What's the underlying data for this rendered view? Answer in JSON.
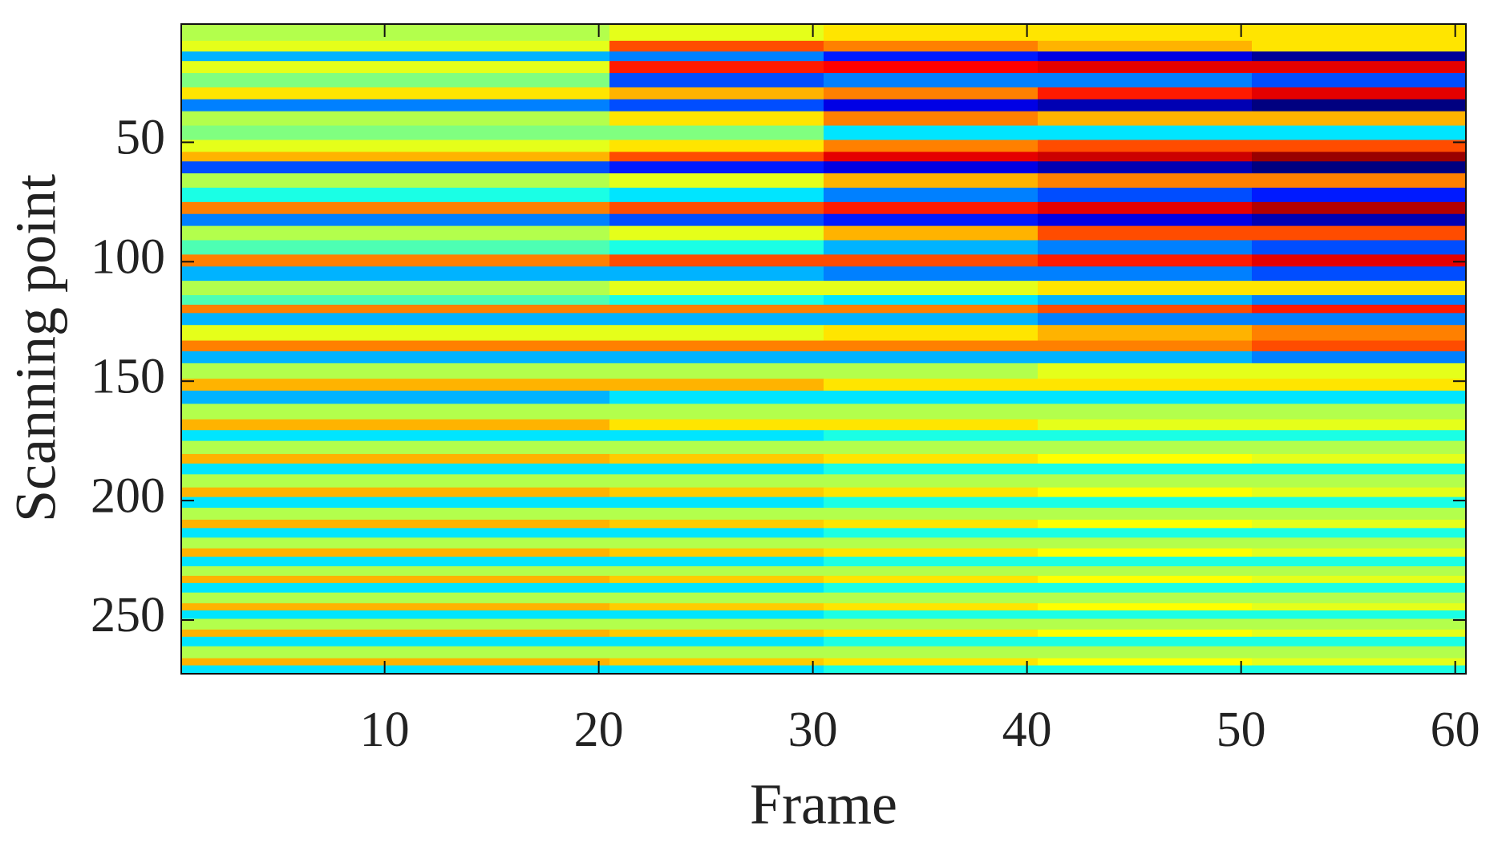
{
  "chart_data": {
    "type": "heatmap",
    "xlabel": "Frame",
    "ylabel": "Scanning point",
    "xlim": [
      0.5,
      60.5
    ],
    "ylim": [
      0.5,
      272.5
    ],
    "y_reversed": true,
    "xticks": [
      10,
      20,
      30,
      40,
      50,
      60
    ],
    "yticks": [
      50,
      100,
      150,
      200,
      250
    ],
    "colormap": "jet",
    "clim": [
      -1,
      1
    ],
    "x": [
      5.5,
      15.5,
      25.5,
      35.5,
      45.5,
      55.5
    ],
    "y": [
      5,
      10,
      14,
      18,
      24,
      30,
      34,
      40,
      46,
      52,
      56,
      60,
      66,
      72,
      78,
      82,
      88,
      94,
      100,
      104,
      112,
      116,
      120,
      123,
      130,
      136,
      139,
      146,
      152,
      156,
      163,
      169,
      172,
      178,
      183,
      186,
      192,
      197,
      200,
      206,
      210,
      213,
      218,
      222,
      225,
      230,
      233,
      236,
      241,
      245,
      247,
      252,
      256,
      258,
      264,
      268,
      270
    ],
    "z": [
      [
        0.1,
        0.1,
        0.2,
        0.3,
        0.3,
        0.3
      ],
      [
        0.2,
        0.2,
        0.6,
        0.5,
        0.4,
        0.3
      ],
      [
        -0.4,
        -0.4,
        -0.5,
        -0.7,
        -0.8,
        -0.95
      ],
      [
        0.2,
        0.2,
        0.7,
        0.75,
        0.8,
        0.8
      ],
      [
        0,
        0,
        -0.6,
        -0.5,
        -0.5,
        -0.6
      ],
      [
        0.3,
        0.3,
        0.4,
        0.5,
        0.7,
        0.8
      ],
      [
        -0.5,
        -0.5,
        -0.6,
        -0.8,
        -0.9,
        -1
      ],
      [
        0.1,
        0.1,
        0.3,
        0.5,
        0.4,
        0.4
      ],
      [
        0,
        0,
        0,
        -0.3,
        -0.3,
        -0.3
      ],
      [
        0.2,
        0.2,
        0.3,
        0.5,
        0.6,
        0.6
      ],
      [
        0.4,
        0.4,
        0.6,
        0.8,
        0.85,
        0.95
      ],
      [
        -0.6,
        -0.6,
        -0.7,
        -0.8,
        -0.9,
        -1
      ],
      [
        0.1,
        0.1,
        0.2,
        0.4,
        0.5,
        0.5
      ],
      [
        -0.2,
        -0.2,
        -0.3,
        -0.5,
        -0.6,
        -0.7
      ],
      [
        0.5,
        0.5,
        0.6,
        0.7,
        0.8,
        0.9
      ],
      [
        -0.5,
        -0.5,
        -0.6,
        -0.7,
        -0.8,
        -0.9
      ],
      [
        0.1,
        0.1,
        0.2,
        0.4,
        0.6,
        0.6
      ],
      [
        -0.1,
        -0.1,
        -0.2,
        -0.4,
        -0.5,
        -0.6
      ],
      [
        0.5,
        0.5,
        0.6,
        0.6,
        0.7,
        0.8
      ],
      [
        -0.4,
        -0.4,
        -0.4,
        -0.5,
        -0.5,
        -0.6
      ],
      [
        0.1,
        0.1,
        0.2,
        0.2,
        0.3,
        0.3
      ],
      [
        -0.1,
        -0.1,
        -0.2,
        -0.3,
        -0.4,
        -0.5
      ],
      [
        0.5,
        0.5,
        0.5,
        0.5,
        0.6,
        0.7
      ],
      [
        -0.4,
        -0.4,
        -0.4,
        -0.4,
        -0.5,
        -0.5
      ],
      [
        0.2,
        0.2,
        0.2,
        0.3,
        0.4,
        0.5
      ],
      [
        0.5,
        0.5,
        0.5,
        0.5,
        0.5,
        0.6
      ],
      [
        -0.4,
        -0.4,
        -0.4,
        -0.4,
        -0.4,
        -0.5
      ],
      [
        0.1,
        0.1,
        0.1,
        0.1,
        0.2,
        0.2
      ],
      [
        0.4,
        0.4,
        0.4,
        0.3,
        0.3,
        0.3
      ],
      [
        -0.4,
        -0.4,
        -0.3,
        -0.3,
        -0.3,
        -0.3
      ],
      [
        0.1,
        0.1,
        0.1,
        0.1,
        0.1,
        0.1
      ],
      [
        0.4,
        0.4,
        0.3,
        0.3,
        0.2,
        0.2
      ],
      [
        -0.3,
        -0.3,
        -0.3,
        -0.2,
        -0.2,
        -0.2
      ],
      [
        0.1,
        0.1,
        0.1,
        0.1,
        0.1,
        0.1
      ],
      [
        0.4,
        0.4,
        0.35,
        0.3,
        0.25,
        0.2
      ],
      [
        -0.3,
        -0.3,
        -0.3,
        -0.2,
        -0.2,
        -0.2
      ],
      [
        0.1,
        0.1,
        0.1,
        0.1,
        0.1,
        0.1
      ],
      [
        0.4,
        0.4,
        0.35,
        0.3,
        0.25,
        0.2
      ],
      [
        -0.3,
        -0.3,
        -0.3,
        -0.2,
        -0.2,
        -0.2
      ],
      [
        0.1,
        0.1,
        0.1,
        0.1,
        0.1,
        0.1
      ],
      [
        0.4,
        0.4,
        0.35,
        0.3,
        0.25,
        0.2
      ],
      [
        -0.3,
        -0.3,
        -0.3,
        -0.2,
        -0.2,
        -0.2
      ],
      [
        0.1,
        0.1,
        0.1,
        0.1,
        0.1,
        0.1
      ],
      [
        0.4,
        0.4,
        0.35,
        0.3,
        0.25,
        0.2
      ],
      [
        -0.3,
        -0.3,
        -0.3,
        -0.2,
        -0.2,
        -0.2
      ],
      [
        0.1,
        0.1,
        0.1,
        0.1,
        0.1,
        0.1
      ],
      [
        0.4,
        0.4,
        0.35,
        0.3,
        0.25,
        0.2
      ],
      [
        -0.3,
        -0.3,
        -0.3,
        -0.2,
        -0.2,
        -0.2
      ],
      [
        0.1,
        0.1,
        0.1,
        0.1,
        0.1,
        0.1
      ],
      [
        0.4,
        0.4,
        0.35,
        0.3,
        0.25,
        0.2
      ],
      [
        -0.3,
        -0.3,
        -0.3,
        -0.2,
        -0.2,
        -0.2
      ],
      [
        0.1,
        0.1,
        0.1,
        0.1,
        0.1,
        0.1
      ],
      [
        0.4,
        0.4,
        0.35,
        0.3,
        0.25,
        0.2
      ],
      [
        -0.3,
        -0.3,
        -0.3,
        -0.2,
        -0.2,
        -0.2
      ],
      [
        0.1,
        0.1,
        0.1,
        0.1,
        0.1,
        0.1
      ],
      [
        0.4,
        0.4,
        0.35,
        0.3,
        0.25,
        0.2
      ],
      [
        -0.3,
        -0.3,
        -0.3,
        -0.2,
        -0.2,
        -0.2
      ]
    ]
  }
}
